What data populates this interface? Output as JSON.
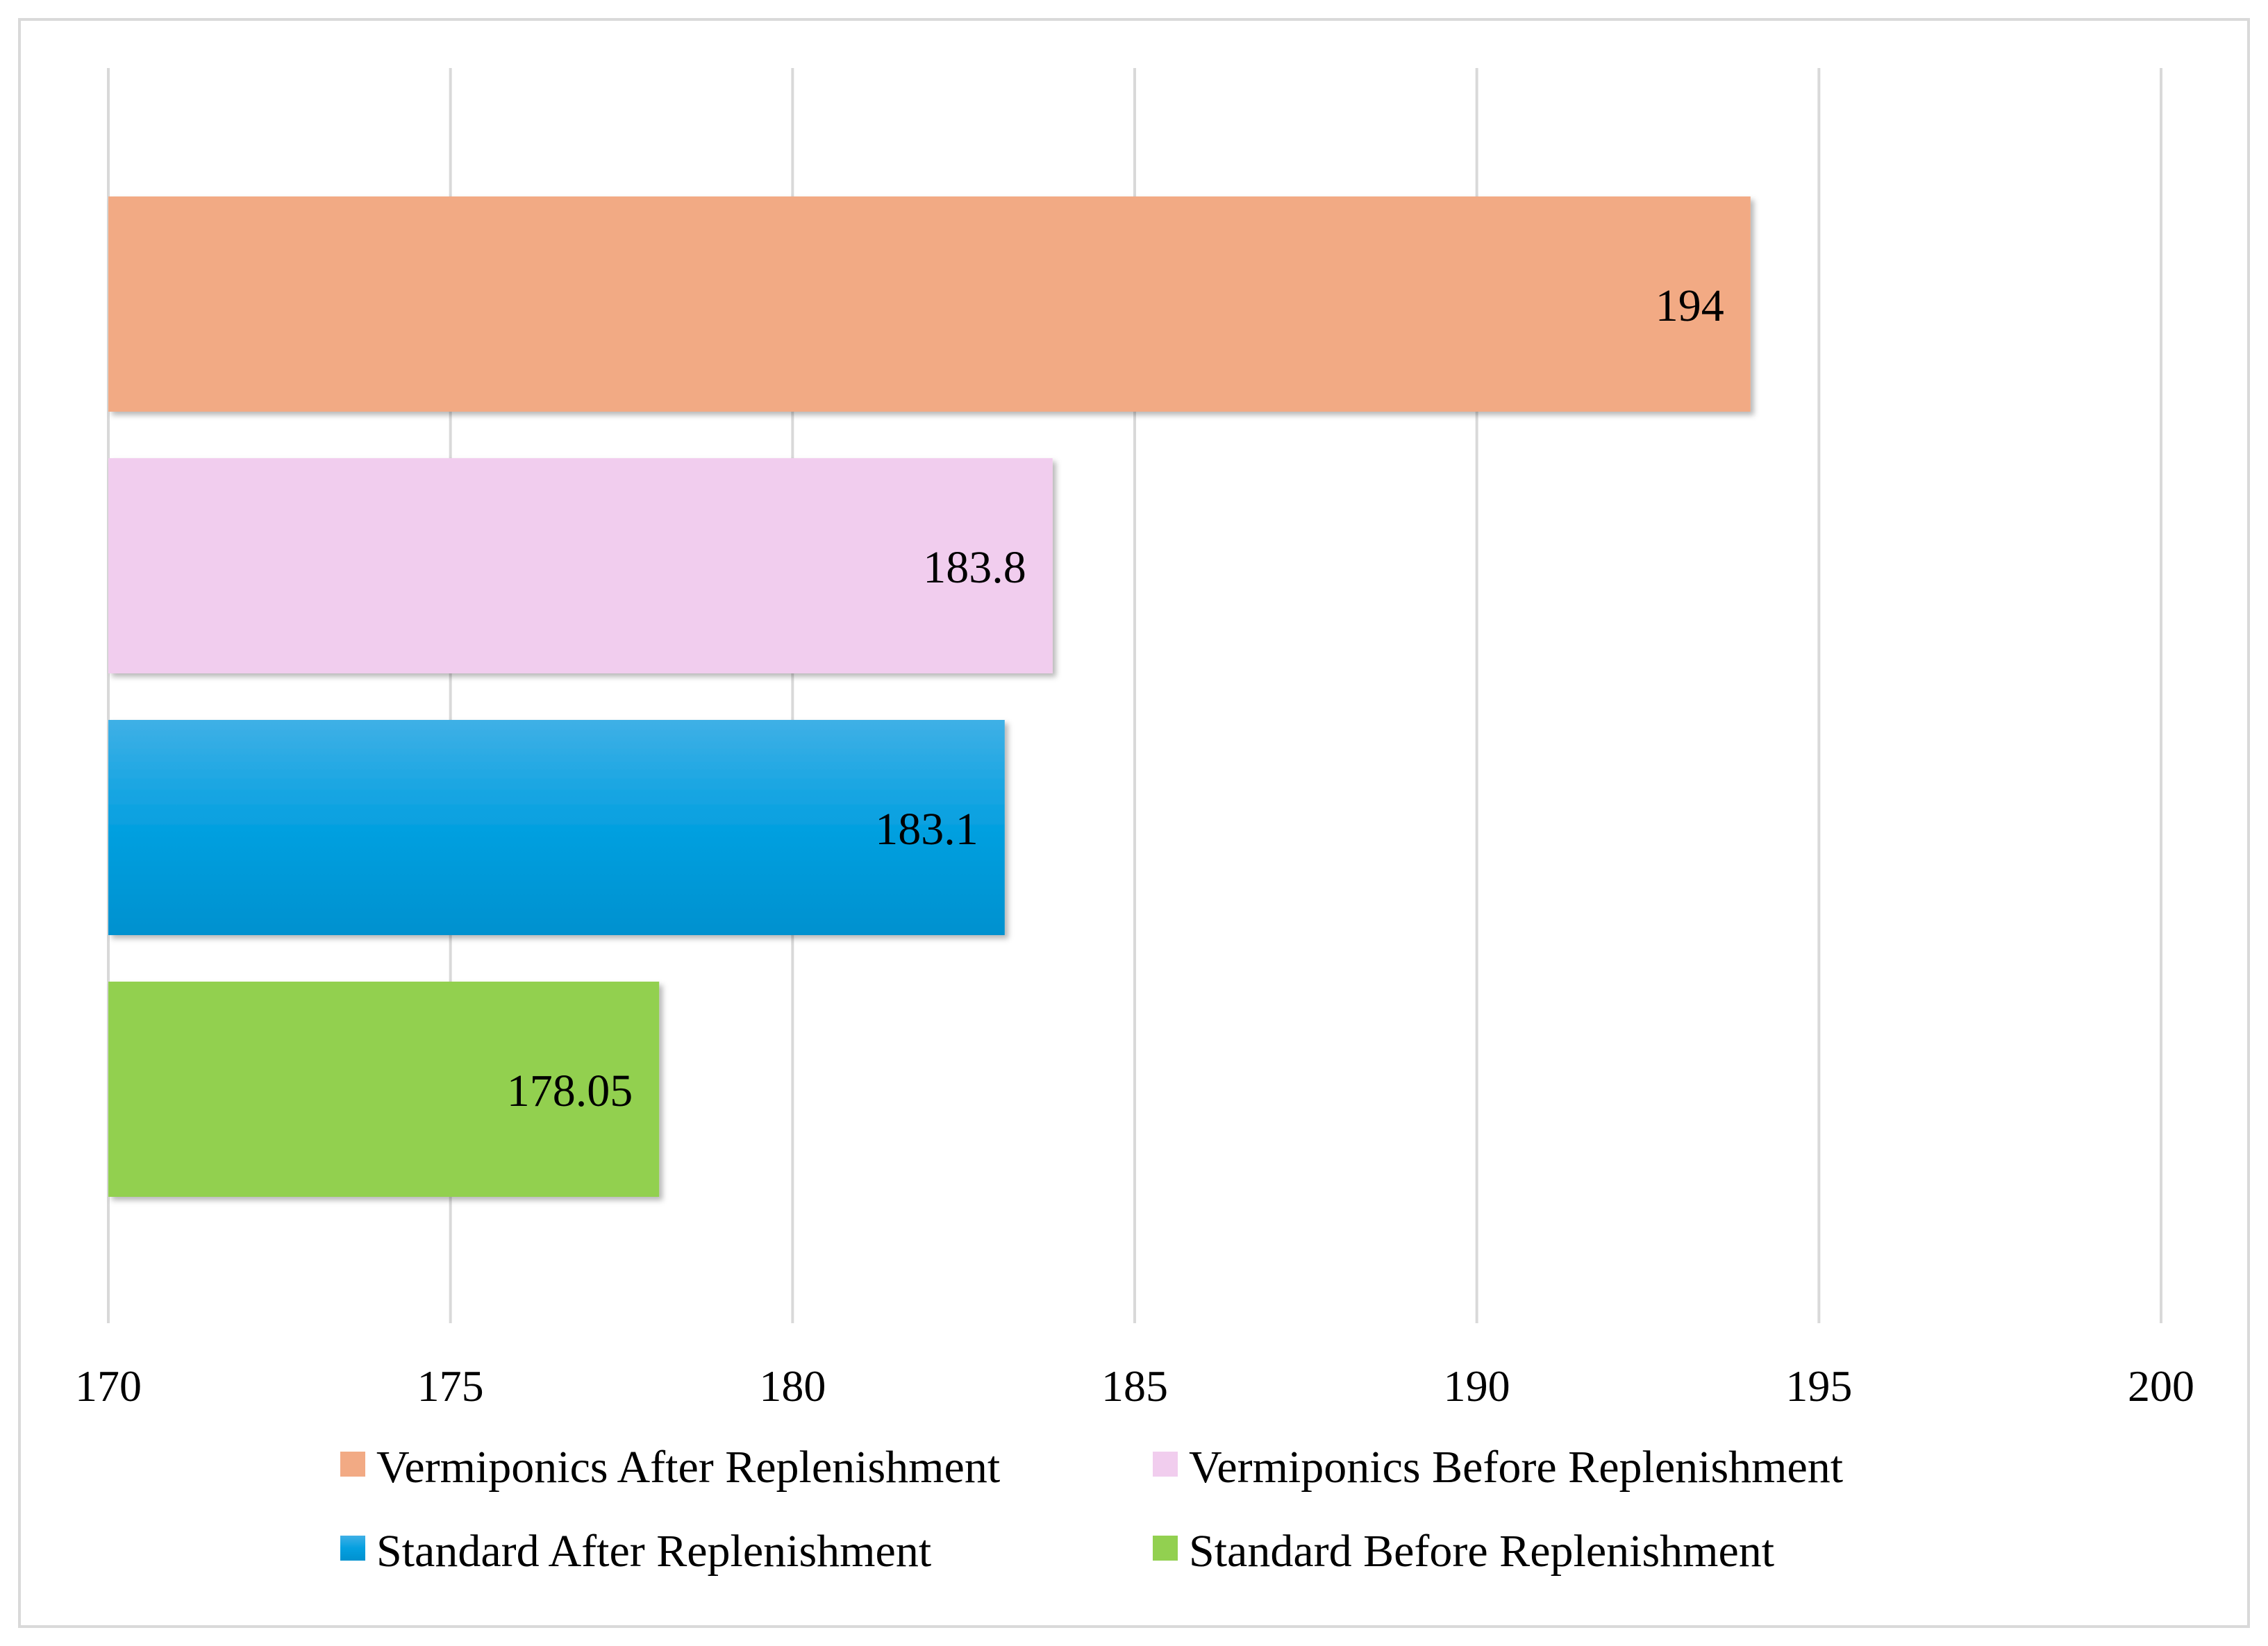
{
  "chart_data": {
    "type": "bar",
    "orientation": "horizontal",
    "title": "",
    "xlabel": "",
    "ylabel": "",
    "xlim": [
      170,
      200
    ],
    "x_ticks": [
      170,
      175,
      180,
      185,
      190,
      195,
      200
    ],
    "grid": true,
    "legend_position": "bottom",
    "series": [
      {
        "name": "Vermiponics After Replenishment",
        "value": 194,
        "label": "194",
        "color": "#F2AA84"
      },
      {
        "name": "Vermiponics Before Replenishment",
        "value": 183.8,
        "label": "183.8",
        "color": "#F1CDEE"
      },
      {
        "name": "Standard After Replenishment",
        "value": 183.1,
        "label": "183.1",
        "color": "#069FDC"
      },
      {
        "name": "Standard Before Replenishment",
        "value": 178.05,
        "label": "178.05",
        "color": "#92D050"
      }
    ]
  }
}
